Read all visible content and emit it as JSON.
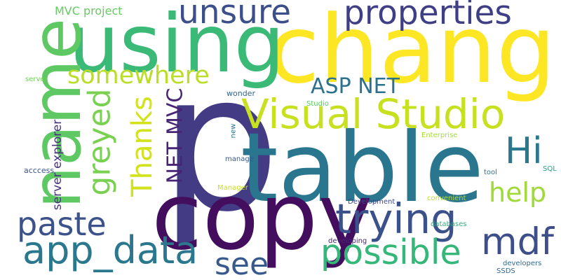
{
  "words": [
    {
      "text": "p",
      "color": "#433c84"
    },
    {
      "text": "change",
      "color": "#fde724"
    },
    {
      "text": "table",
      "color": "#2a768e"
    },
    {
      "text": "copy",
      "color": "#440e5f"
    },
    {
      "text": "using",
      "color": "#3aba76"
    },
    {
      "text": "name",
      "color": "#5ec962"
    },
    {
      "text": "Visual Studio",
      "color": "#c7e020"
    },
    {
      "text": "properties",
      "color": "#3f3f86"
    },
    {
      "text": "unsure",
      "color": "#3c4f8a"
    },
    {
      "text": "app_data",
      "color": "#2a778e"
    },
    {
      "text": "trying",
      "color": "#3b518a"
    },
    {
      "text": "possible",
      "color": "#35b779"
    },
    {
      "text": "mdf",
      "color": "#3d4e8a"
    },
    {
      "text": "paste",
      "color": "#3b528b"
    },
    {
      "text": "see",
      "color": "#38598c"
    },
    {
      "text": "somewhere",
      "color": "#bade28"
    },
    {
      "text": "greyed",
      "color": "#7ad151"
    },
    {
      "text": "Thanks",
      "color": "#d2e21b"
    },
    {
      "text": "NET MVC",
      "color": "#482475"
    },
    {
      "text": "ASP NET",
      "color": "#2c728e"
    },
    {
      "text": "Hi",
      "color": "#2a788e"
    },
    {
      "text": "help",
      "color": "#a0da39"
    },
    {
      "text": "server explorer",
      "color": "#46327e"
    },
    {
      "text": "MVC project",
      "color": "#63cb5f"
    },
    {
      "text": "server",
      "color": "#6ece58"
    },
    {
      "text": "acccess",
      "color": "#3b528b"
    },
    {
      "text": "wonder",
      "color": "#31668e"
    },
    {
      "text": "new",
      "color": "#2d708e"
    },
    {
      "text": "manage",
      "color": "#38598c"
    },
    {
      "text": "Manager",
      "color": "#c8e020"
    },
    {
      "text": "Studio",
      "color": "#5ec962"
    },
    {
      "text": "Enterprise",
      "color": "#a5db36"
    },
    {
      "text": "tool",
      "color": "#2c728e"
    },
    {
      "text": "SQL",
      "color": "#22a884"
    },
    {
      "text": "Development",
      "color": "#3e4a89"
    },
    {
      "text": "convenient",
      "color": "#b8de29"
    },
    {
      "text": "databases",
      "color": "#2db27d"
    },
    {
      "text": "developing",
      "color": "#482677"
    },
    {
      "text": "developers",
      "color": "#2f6b8e"
    },
    {
      "text": "SSDS",
      "color": "#31688e"
    }
  ]
}
